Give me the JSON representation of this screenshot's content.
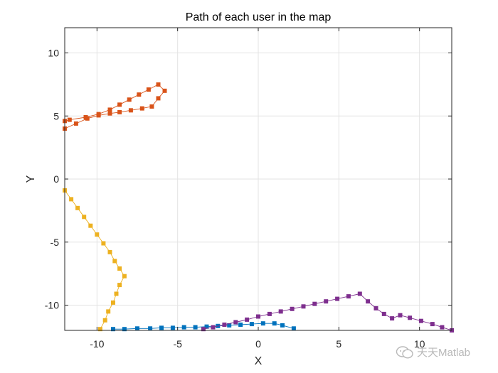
{
  "chart_data": {
    "type": "line",
    "title": "Path of each user in the map",
    "xlabel": "X",
    "ylabel": "Y",
    "xlim": [
      -12,
      12
    ],
    "ylim": [
      -12,
      12
    ],
    "xticks": [
      -10,
      -5,
      0,
      5,
      10
    ],
    "yticks": [
      -10,
      -5,
      0,
      5,
      10
    ],
    "xtick_labels": [
      "-10",
      "-5",
      "0",
      "5",
      "10"
    ],
    "ytick_labels": [
      "-10",
      "-5",
      "0",
      "5",
      "10"
    ],
    "grid": true,
    "marker": "square",
    "series": [
      {
        "color": "#0072BD",
        "points": [
          [
            -9.0,
            -11.9
          ],
          [
            -8.3,
            -11.9
          ],
          [
            -7.5,
            -11.85
          ],
          [
            -6.7,
            -11.85
          ],
          [
            -6.0,
            -11.8
          ],
          [
            -5.3,
            -11.8
          ],
          [
            -4.6,
            -11.75
          ],
          [
            -3.9,
            -11.75
          ],
          [
            -3.2,
            -11.7
          ],
          [
            -2.5,
            -11.65
          ],
          [
            -1.8,
            -11.6
          ],
          [
            -1.1,
            -11.55
          ],
          [
            -0.4,
            -11.5
          ],
          [
            0.3,
            -11.45
          ],
          [
            1.0,
            -11.45
          ],
          [
            1.5,
            -11.6
          ],
          [
            2.2,
            -11.85
          ]
        ]
      },
      {
        "color": "#D95319",
        "points": [
          [
            -12.0,
            4.0
          ],
          [
            -11.3,
            4.4
          ],
          [
            -10.6,
            4.8
          ],
          [
            -9.9,
            5.05
          ],
          [
            -9.2,
            5.2
          ],
          [
            -8.6,
            5.3
          ],
          [
            -7.9,
            5.45
          ],
          [
            -7.2,
            5.6
          ],
          [
            -6.6,
            5.75
          ],
          [
            -6.2,
            6.4
          ],
          [
            -5.8,
            7.0
          ],
          [
            -6.2,
            7.5
          ],
          [
            -6.8,
            7.1
          ],
          [
            -7.4,
            6.7
          ],
          [
            -8.0,
            6.3
          ],
          [
            -8.6,
            5.9
          ],
          [
            -9.2,
            5.5
          ],
          [
            -9.9,
            5.15
          ],
          [
            -10.7,
            4.9
          ],
          [
            -11.7,
            4.7
          ],
          [
            -12.0,
            4.6
          ]
        ]
      },
      {
        "color": "#EDB120",
        "points": [
          [
            -12.0,
            -0.9
          ],
          [
            -11.6,
            -1.6
          ],
          [
            -11.2,
            -2.3
          ],
          [
            -10.8,
            -3.0
          ],
          [
            -10.4,
            -3.7
          ],
          [
            -10.0,
            -4.4
          ],
          [
            -9.6,
            -5.1
          ],
          [
            -9.2,
            -5.8
          ],
          [
            -8.9,
            -6.5
          ],
          [
            -8.6,
            -7.1
          ],
          [
            -8.3,
            -7.7
          ],
          [
            -8.6,
            -8.4
          ],
          [
            -8.8,
            -9.1
          ],
          [
            -9.0,
            -9.8
          ],
          [
            -9.3,
            -10.5
          ],
          [
            -9.5,
            -11.2
          ],
          [
            -9.8,
            -11.9
          ]
        ]
      },
      {
        "color": "#7E2F8E",
        "points": [
          [
            -3.4,
            -11.9
          ],
          [
            -2.8,
            -11.75
          ],
          [
            -2.1,
            -11.55
          ],
          [
            -1.4,
            -11.35
          ],
          [
            -0.7,
            -11.15
          ],
          [
            0.0,
            -10.9
          ],
          [
            0.7,
            -10.7
          ],
          [
            1.4,
            -10.5
          ],
          [
            2.1,
            -10.3
          ],
          [
            2.8,
            -10.1
          ],
          [
            3.5,
            -9.9
          ],
          [
            4.2,
            -9.7
          ],
          [
            4.9,
            -9.5
          ],
          [
            5.6,
            -9.3
          ],
          [
            6.3,
            -9.1
          ],
          [
            6.8,
            -9.7
          ],
          [
            7.3,
            -10.25
          ],
          [
            7.8,
            -10.7
          ],
          [
            8.3,
            -11.05
          ],
          [
            8.8,
            -10.8
          ],
          [
            9.4,
            -11.0
          ],
          [
            10.1,
            -11.25
          ],
          [
            10.8,
            -11.5
          ],
          [
            11.4,
            -11.75
          ],
          [
            12.0,
            -12.0
          ]
        ]
      }
    ]
  },
  "watermark": {
    "text": "天天Matlab",
    "icon": "chat-bubble-icon"
  }
}
